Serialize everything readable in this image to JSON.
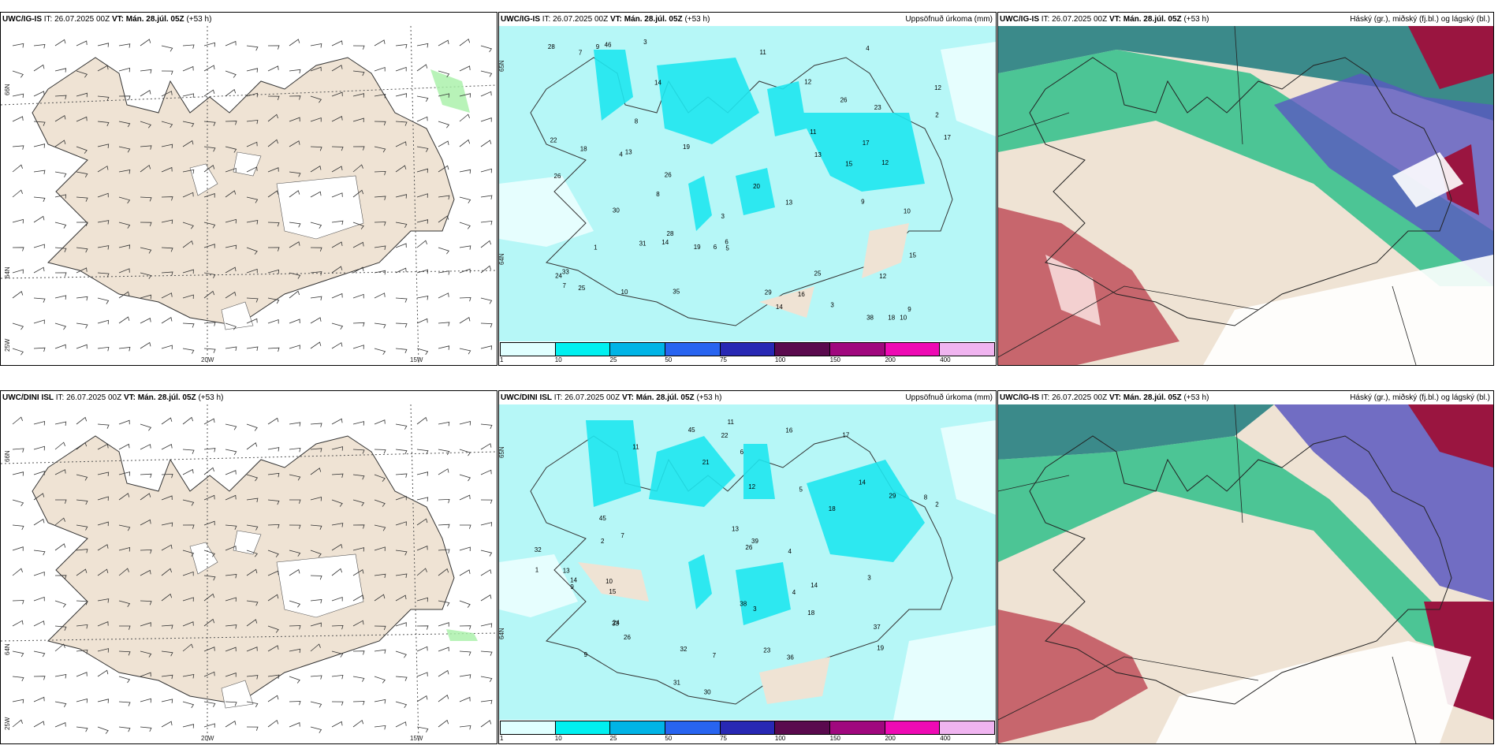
{
  "colors": {
    "land": "#efe3d4",
    "precip_bg": "#b6f7f7",
    "precip_mid": "#1ee6ee",
    "cloud_high": "#4a8f8a",
    "cloud_mid": "#5a58c0",
    "cloud_low": "#1fcf8f",
    "cloud_red": "#c0505a"
  },
  "top": {
    "wind": {
      "model": "UWC/IG-IS",
      "it": "IT: 26.07.2025 00Z",
      "vt": "VT: Mán. 28.júl. 05Z",
      "lead": "(+53 h)",
      "lat_labels": [
        "66N",
        "64N",
        "25W"
      ],
      "lon_labels": [
        "20W",
        "15W"
      ]
    },
    "precip": {
      "model": "UWC/IG-IS",
      "it": "IT: 26.07.2025 00Z",
      "vt": "VT: Mán. 28.júl. 05Z",
      "lead": "(+53 h)",
      "right": "Uppsöfnuð úrkoma (mm)",
      "lat_labels": [
        "65N",
        "64N"
      ]
    },
    "cloud": {
      "model": "UWC/IG-IS",
      "it": "IT: 26.07.2025 00Z",
      "vt": "VT: Mán. 28.júl. 05Z",
      "lead": "(+53 h)",
      "right": "Háský (gr.), miðský (fj.bl.) og lágský (bl.)"
    }
  },
  "bottom": {
    "wind": {
      "model": "UWC/DINI ISL",
      "it": "IT: 26.07.2025 00Z",
      "vt": "VT: Mán. 28.júl. 05Z",
      "lead": "(+53 h)",
      "lat_labels": [
        "66N",
        "64N",
        "25W"
      ],
      "lon_labels": [
        "20W",
        "15W"
      ]
    },
    "precip": {
      "model": "UWC/DINI ISL",
      "it": "IT: 26.07.2025 00Z",
      "vt": "VT: Mán. 28.júl. 05Z",
      "lead": "(+53 h)",
      "right": "Uppsöfnuð úrkoma (mm)",
      "lat_labels": [
        "65N",
        "64N"
      ]
    },
    "cloud": {
      "model": "UWC/IG-IS",
      "it": "IT: 26.07.2025 00Z",
      "vt": "VT: Mán. 28.júl. 05Z",
      "lead": "(+53 h)",
      "right": "Háský (gr.), miðský (fj.bl.) og lágský (bl.)"
    }
  },
  "colorbar": {
    "ticks": [
      "1",
      "10",
      "25",
      "50",
      "75",
      "100",
      "150",
      "200",
      "400"
    ],
    "colors": [
      "#e0ffff",
      "#00f0f0",
      "#00b4e6",
      "#2864f0",
      "#2828b4",
      "#5a0a4e",
      "#a0087e",
      "#ee0ab4",
      "#f0b4f0"
    ]
  },
  "precip_values": {
    "top": [
      "3",
      "4",
      "9",
      "9",
      "10",
      "14",
      "6",
      "8",
      "14",
      "15",
      "12",
      "11",
      "28",
      "38",
      "26",
      "25",
      "20",
      "17",
      "12",
      "19",
      "18",
      "13",
      "16",
      "31",
      "12",
      "13",
      "29",
      "33",
      "23",
      "24",
      "28",
      "19",
      "25",
      "15",
      "26",
      "22",
      "18",
      "46",
      "30",
      "35",
      "26",
      "9",
      "10",
      "3",
      "5",
      "7",
      "6",
      "8",
      "3",
      "12",
      "14",
      "17",
      "13",
      "4",
      "2",
      "11",
      "10",
      "7",
      "1"
    ],
    "bottom": [
      "9",
      "17",
      "11",
      "14",
      "3",
      "7",
      "15",
      "24",
      "29",
      "18",
      "13",
      "11",
      "18",
      "26",
      "30",
      "45",
      "19",
      "32",
      "33",
      "31",
      "36",
      "22",
      "21",
      "39",
      "13",
      "32",
      "14",
      "16",
      "12",
      "14",
      "45",
      "26",
      "23",
      "38",
      "37",
      "9",
      "8",
      "4",
      "5",
      "3",
      "2",
      "6",
      "7",
      "10",
      "1",
      "2",
      "4"
    ]
  }
}
